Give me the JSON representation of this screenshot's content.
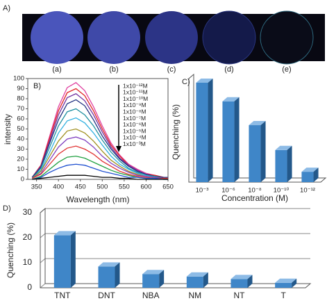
{
  "panel_a": {
    "label": "A)",
    "samples": [
      "(a)",
      "(b)",
      "(c)",
      "(d)",
      "(e)"
    ]
  },
  "chart_data": [
    {
      "type": "line",
      "panel_label": "B)",
      "xlabel": "Wavelength (nm)",
      "ylabel": "intensity",
      "x": [
        340,
        360,
        380,
        400,
        420,
        440,
        460,
        480,
        500,
        520,
        540,
        560,
        580,
        600,
        620,
        640,
        650
      ],
      "xlim": [
        330,
        650
      ],
      "xticks": [
        350,
        400,
        450,
        500,
        550,
        600,
        650
      ],
      "ylim": [
        0,
        100
      ],
      "yticks": [
        0,
        10,
        20,
        30,
        40,
        50,
        60,
        70,
        80,
        90,
        100
      ],
      "series": [
        {
          "color": "#e040a0",
          "values": [
            2,
            14,
            43,
            72,
            91,
            96,
            88,
            72,
            53,
            36,
            24,
            15,
            10,
            6,
            4,
            2,
            2
          ]
        },
        {
          "name": "1x10⁻¹²M",
          "color": "#e02020",
          "values": [
            2,
            14,
            41,
            68,
            86,
            90,
            83,
            68,
            50,
            34,
            23,
            14,
            9,
            5,
            4,
            2,
            2
          ]
        },
        {
          "name": "1x10⁻¹¹M",
          "color": "#7030a0",
          "values": [
            2,
            13,
            38,
            64,
            81,
            85,
            78,
            64,
            47,
            32,
            21,
            14,
            9,
            5,
            3,
            2,
            2
          ]
        },
        {
          "name": "1x10⁻¹⁰M",
          "color": "#203080",
          "values": [
            2,
            12,
            36,
            59,
            75,
            79,
            73,
            59,
            43,
            30,
            20,
            13,
            8,
            5,
            3,
            2,
            2
          ]
        },
        {
          "name": "1x10⁻⁹M",
          "color": "#2090a0",
          "values": [
            1,
            11,
            32,
            53,
            67,
            70,
            64,
            53,
            39,
            27,
            18,
            11,
            7,
            4,
            3,
            1,
            1
          ]
        },
        {
          "name": "1x10⁻⁸M",
          "color": "#30b0e0",
          "values": [
            1,
            9,
            27,
            46,
            58,
            61,
            56,
            46,
            34,
            23,
            15,
            10,
            6,
            4,
            2,
            1,
            1
          ]
        },
        {
          "name": "1x10⁻⁷M",
          "color": "#a09020",
          "values": [
            1,
            8,
            23,
            38,
            48,
            50,
            46,
            38,
            28,
            19,
            13,
            8,
            5,
            3,
            2,
            1,
            1
          ]
        },
        {
          "name": "1x10⁻⁶M",
          "color": "#8040c0",
          "values": [
            1,
            6,
            19,
            32,
            40,
            42,
            39,
            32,
            23,
            16,
            11,
            7,
            4,
            3,
            2,
            1,
            1
          ]
        },
        {
          "name": "1x10⁻⁵M",
          "color": "#e03030",
          "values": [
            1,
            5,
            15,
            25,
            31,
            33,
            30,
            25,
            18,
            13,
            8,
            5,
            3,
            2,
            1,
            1,
            1
          ]
        },
        {
          "name": "1x10⁻⁴M",
          "color": "#20a040",
          "values": [
            0,
            3,
            10,
            17,
            22,
            23,
            21,
            17,
            13,
            9,
            6,
            4,
            2,
            1,
            1,
            0,
            0
          ]
        },
        {
          "name": "1x10⁻³M",
          "color": "#2050d0",
          "values": [
            0,
            2,
            7,
            11,
            14,
            15,
            14,
            11,
            8,
            6,
            4,
            2,
            2,
            1,
            1,
            0,
            0
          ]
        },
        {
          "color": "#000000",
          "values": [
            0,
            1,
            2,
            3,
            4,
            4,
            4,
            3,
            2,
            2,
            1,
            1,
            0,
            0,
            0,
            0,
            0
          ]
        }
      ]
    },
    {
      "type": "bar",
      "panel_label": "C)",
      "xlabel": "Concentration (M)",
      "ylabel": "Quenching (%)",
      "categories": [
        "10⁻³",
        "10⁻⁶",
        "10⁻⁸",
        "10⁻¹⁰",
        "10⁻¹²"
      ],
      "values": [
        96,
        78,
        55,
        31,
        10
      ],
      "color": "#3f86c8",
      "ylim": [
        0,
        100
      ]
    },
    {
      "type": "bar",
      "panel_label": "D)",
      "ylabel": "Quenching (%)",
      "categories": [
        "TNT",
        "DNT",
        "NBA",
        "NM",
        "NT",
        "T"
      ],
      "values": [
        21,
        8.5,
        5.5,
        4.5,
        3.5,
        2
      ],
      "color": "#3f86c8",
      "ylim": [
        0,
        30
      ],
      "yticks": [
        0,
        10,
        20,
        30
      ],
      "grid": true
    }
  ]
}
